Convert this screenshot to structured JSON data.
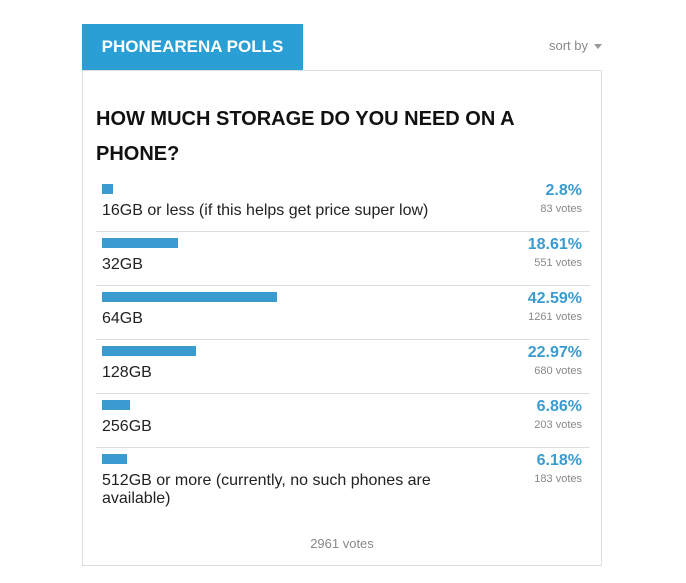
{
  "header": {
    "title": "PHONEARENA POLLS",
    "sort": "sort by"
  },
  "poll": {
    "question": "HOW MUCH STORAGE DO YOU NEED ON A PHONE?",
    "options": [
      {
        "label": "16GB or less (if this helps get price super low)",
        "percent": 2.8,
        "percent_label": "2.8%",
        "votes_label": "83 votes"
      },
      {
        "label": "32GB",
        "percent": 18.61,
        "percent_label": "18.61%",
        "votes_label": "551 votes"
      },
      {
        "label": "64GB",
        "percent": 42.59,
        "percent_label": "42.59%",
        "votes_label": "1261 votes"
      },
      {
        "label": "128GB",
        "percent": 22.97,
        "percent_label": "22.97%",
        "votes_label": "680 votes"
      },
      {
        "label": "256GB",
        "percent": 6.86,
        "percent_label": "6.86%",
        "votes_label": "203 votes"
      },
      {
        "label": "512GB or more (currently, no such phones are available)",
        "percent": 6.18,
        "percent_label": "6.18%",
        "votes_label": "183 votes"
      }
    ],
    "total": "2961 votes"
  }
}
